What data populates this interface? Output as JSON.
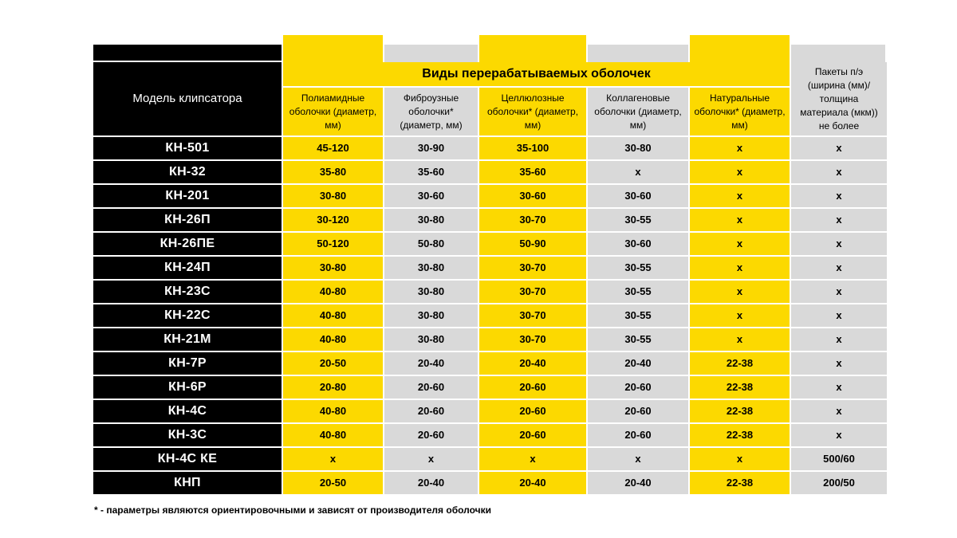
{
  "header": {
    "model_label": "Модель клипсатора",
    "group_label": "Виды перерабатываемых оболочек",
    "columns": [
      "Полиамидные оболочки (диаметр, мм)",
      "Фиброузные оболочки* (диаметр, мм)",
      "Целлюлозные оболочки* (диаметр, мм)",
      "Коллагеновые оболочки (диаметр, мм)",
      "Натуральные оболочки* (диаметр, мм)",
      "Пакеты п/э (ширина (мм)/ толщина материала (мкм)) не более"
    ]
  },
  "rows": [
    {
      "model": "КН-501",
      "values": [
        "45-120",
        "30-90",
        "35-100",
        "30-80",
        "х",
        "х"
      ]
    },
    {
      "model": "КН-32",
      "values": [
        "35-80",
        "35-60",
        "35-60",
        "х",
        "х",
        "х"
      ]
    },
    {
      "model": "КН-201",
      "values": [
        "30-80",
        "30-60",
        "30-60",
        "30-60",
        "х",
        "х"
      ]
    },
    {
      "model": "КН-26П",
      "values": [
        "30-120",
        "30-80",
        "30-70",
        "30-55",
        "х",
        "х"
      ]
    },
    {
      "model": "КН-26ПЕ",
      "values": [
        "50-120",
        "50-80",
        "50-90",
        "30-60",
        "х",
        "х"
      ]
    },
    {
      "model": "КН-24П",
      "values": [
        "30-80",
        "30-80",
        "30-70",
        "30-55",
        "х",
        "х"
      ]
    },
    {
      "model": "КН-23С",
      "values": [
        "40-80",
        "30-80",
        "30-70",
        "30-55",
        "х",
        "х"
      ]
    },
    {
      "model": "КН-22С",
      "values": [
        "40-80",
        "30-80",
        "30-70",
        "30-55",
        "х",
        "х"
      ]
    },
    {
      "model": "КН-21М",
      "values": [
        "40-80",
        "30-80",
        "30-70",
        "30-55",
        "х",
        "х"
      ]
    },
    {
      "model": "КН-7Р",
      "values": [
        "20-50",
        "20-40",
        "20-40",
        "20-40",
        "22-38",
        "х"
      ]
    },
    {
      "model": "КН-6Р",
      "values": [
        "20-80",
        "20-60",
        "20-60",
        "20-60",
        "22-38",
        "х"
      ]
    },
    {
      "model": "КН-4С",
      "values": [
        "40-80",
        "20-60",
        "20-60",
        "20-60",
        "22-38",
        "х"
      ]
    },
    {
      "model": "КН-3С",
      "values": [
        "40-80",
        "20-60",
        "20-60",
        "20-60",
        "22-38",
        "х"
      ]
    },
    {
      "model": "КН-4С КЕ",
      "values": [
        "х",
        "х",
        "х",
        "х",
        "х",
        "500/60"
      ]
    },
    {
      "model": "КНП",
      "values": [
        "20-50",
        "20-40",
        "20-40",
        "20-40",
        "22-38",
        "200/50"
      ]
    }
  ],
  "footnote": "* - параметры являются ориентировочными и зависят от производителя оболочки",
  "colors": {
    "black": "#000000",
    "yellow": "#fcd900",
    "gray": "#d9d9d9"
  }
}
